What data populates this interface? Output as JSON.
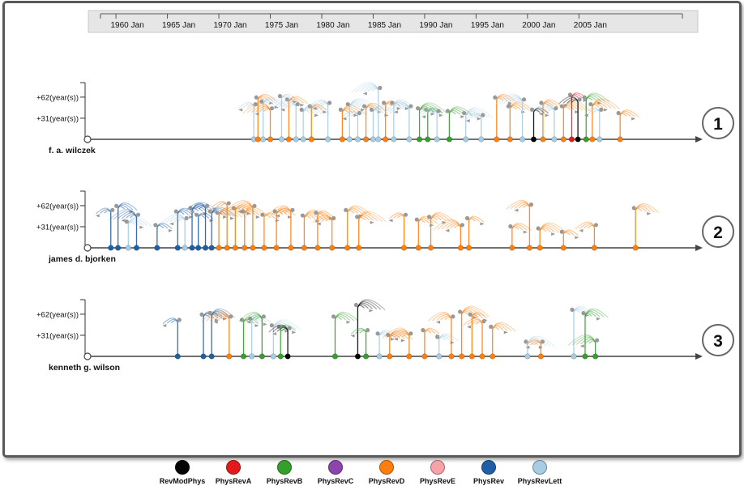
{
  "chart_data": {
    "type": "timeline",
    "time_axis": {
      "range": [
        1957,
        2016
      ],
      "ticks": [
        {
          "year": 1960,
          "label": "1960 Jan"
        },
        {
          "year": 1965,
          "label": "1965 Jan"
        },
        {
          "year": 1970,
          "label": "1970 Jan"
        },
        {
          "year": 1975,
          "label": "1975 Jan"
        },
        {
          "year": 1980,
          "label": "1980 Jan"
        },
        {
          "year": 1985,
          "label": "1985 Jan"
        },
        {
          "year": 1990,
          "label": "1990 Jan"
        },
        {
          "year": 1995,
          "label": "1995 Jan"
        },
        {
          "year": 2000,
          "label": "2000 Jan"
        },
        {
          "year": 2005,
          "label": "2005 Jan"
        }
      ]
    },
    "y_axis": {
      "unit_years": [
        0,
        75
      ],
      "ticks": [
        {
          "value": 31,
          "label": "+31(year(s))"
        },
        {
          "value": 62,
          "label": "+62(year(s))"
        }
      ]
    },
    "panels": [
      {
        "author": "f. a. wilczek",
        "badge": "1",
        "papers": [
          {
            "year": 1973.4,
            "journal": "PhysRevLett",
            "h": 48
          },
          {
            "year": 1973.8,
            "journal": "PhysRevD",
            "h": 58
          },
          {
            "year": 1974.3,
            "journal": "PhysRevLett",
            "h": 52
          },
          {
            "year": 1975.0,
            "journal": "PhysRevD",
            "h": 42
          },
          {
            "year": 1976.1,
            "journal": "PhysRevLett",
            "h": 60
          },
          {
            "year": 1976.8,
            "journal": "PhysRevD",
            "h": 55
          },
          {
            "year": 1977.5,
            "journal": "PhysRevLett",
            "h": 48
          },
          {
            "year": 1978.2,
            "journal": "PhysRevLett",
            "h": 40
          },
          {
            "year": 1979.0,
            "journal": "PhysRevD",
            "h": 45
          },
          {
            "year": 1980.6,
            "journal": "PhysRevLett",
            "h": 50
          },
          {
            "year": 1982.0,
            "journal": "PhysRevD",
            "h": 40
          },
          {
            "year": 1982.7,
            "journal": "PhysRevLett",
            "h": 48
          },
          {
            "year": 1983.5,
            "journal": "PhysRevLett",
            "h": 35
          },
          {
            "year": 1984.3,
            "journal": "PhysRevD",
            "h": 45
          },
          {
            "year": 1985.0,
            "journal": "PhysRevLett",
            "h": 40
          },
          {
            "year": 1985.5,
            "journal": "PhysRevLett",
            "h": 72
          },
          {
            "year": 1986.2,
            "journal": "PhysRevD",
            "h": 50
          },
          {
            "year": 1987.0,
            "journal": "PhysRevLett",
            "h": 50
          },
          {
            "year": 1988.5,
            "journal": "PhysRevLett",
            "h": 45
          },
          {
            "year": 1989.5,
            "journal": "PhysRevB",
            "h": 42
          },
          {
            "year": 1990.3,
            "journal": "PhysRevB",
            "h": 40
          },
          {
            "year": 1991.2,
            "journal": "PhysRevLett",
            "h": 38
          },
          {
            "year": 1992.4,
            "journal": "PhysRevB",
            "h": 38
          },
          {
            "year": 1994.0,
            "journal": "PhysRevLett",
            "h": 35
          },
          {
            "year": 1995.5,
            "journal": "PhysRevLett",
            "h": 32
          },
          {
            "year": 1997.0,
            "journal": "PhysRevD",
            "h": 58
          },
          {
            "year": 1998.3,
            "journal": "PhysRevD",
            "h": 45
          },
          {
            "year": 1999.5,
            "journal": "PhysRevLett",
            "h": 55
          },
          {
            "year": 2000.6,
            "journal": "RevModPhys",
            "h": 40
          },
          {
            "year": 2001.5,
            "journal": "PhysRevD",
            "h": 50
          },
          {
            "year": 2002.6,
            "journal": "PhysRevLett",
            "h": 42
          },
          {
            "year": 2003.5,
            "journal": "PhysRevD",
            "h": 45
          },
          {
            "year": 2004.3,
            "journal": "PhysRevA",
            "h": 62
          },
          {
            "year": 2004.9,
            "journal": "RevModPhys",
            "h": 55
          },
          {
            "year": 2005.7,
            "journal": "PhysRevB",
            "h": 58
          },
          {
            "year": 2006.3,
            "journal": "PhysRevD",
            "h": 48
          },
          {
            "year": 2007.0,
            "journal": "PhysRevLett",
            "h": 40
          },
          {
            "year": 2009.0,
            "journal": "PhysRevD",
            "h": 35
          }
        ]
      },
      {
        "author": "james d. bjorken",
        "badge": "2",
        "papers": [
          {
            "year": 1959.5,
            "journal": "PhysRev",
            "h": 52
          },
          {
            "year": 1960.2,
            "journal": "PhysRev",
            "h": 58
          },
          {
            "year": 1961.2,
            "journal": "PhysRevLett",
            "h": 35
          },
          {
            "year": 1962.0,
            "journal": "PhysRev",
            "h": 45
          },
          {
            "year": 1964.0,
            "journal": "PhysRev",
            "h": 30
          },
          {
            "year": 1966.0,
            "journal": "PhysRev",
            "h": 50
          },
          {
            "year": 1966.7,
            "journal": "PhysRevLett",
            "h": 40
          },
          {
            "year": 1967.4,
            "journal": "PhysRev",
            "h": 55
          },
          {
            "year": 1968.0,
            "journal": "PhysRev",
            "h": 45
          },
          {
            "year": 1968.7,
            "journal": "PhysRev",
            "h": 58
          },
          {
            "year": 1969.3,
            "journal": "PhysRev",
            "h": 50
          },
          {
            "year": 1970.0,
            "journal": "PhysRevD",
            "h": 48
          },
          {
            "year": 1970.8,
            "journal": "PhysRevD",
            "h": 62
          },
          {
            "year": 1971.6,
            "journal": "PhysRevD",
            "h": 55
          },
          {
            "year": 1972.5,
            "journal": "PhysRevD",
            "h": 50
          },
          {
            "year": 1973.3,
            "journal": "PhysRevD",
            "h": 58
          },
          {
            "year": 1974.4,
            "journal": "PhysRevD",
            "h": 45
          },
          {
            "year": 1975.6,
            "journal": "PhysRevD",
            "h": 50
          },
          {
            "year": 1977.0,
            "journal": "PhysRevD",
            "h": 52
          },
          {
            "year": 1978.3,
            "journal": "PhysRevD",
            "h": 44
          },
          {
            "year": 1979.6,
            "journal": "PhysRevD",
            "h": 48
          },
          {
            "year": 1981.0,
            "journal": "PhysRevD",
            "h": 40
          },
          {
            "year": 1982.5,
            "journal": "PhysRevD",
            "h": 52
          },
          {
            "year": 1983.6,
            "journal": "PhysRevD",
            "h": 42
          },
          {
            "year": 1988.0,
            "journal": "PhysRevD",
            "h": 45
          },
          {
            "year": 1989.4,
            "journal": "PhysRevD",
            "h": 38
          },
          {
            "year": 1990.6,
            "journal": "PhysRevD",
            "h": 42
          },
          {
            "year": 1993.5,
            "journal": "PhysRevD",
            "h": 30
          },
          {
            "year": 1994.3,
            "journal": "PhysRevD",
            "h": 40
          },
          {
            "year": 1998.5,
            "journal": "PhysRevD",
            "h": 28
          },
          {
            "year": 2000.2,
            "journal": "PhysRevD",
            "h": 60
          },
          {
            "year": 2001.2,
            "journal": "PhysRevD",
            "h": 25
          },
          {
            "year": 2003.5,
            "journal": "PhysRevD",
            "h": 20
          },
          {
            "year": 2006.5,
            "journal": "PhysRevD",
            "h": 30
          },
          {
            "year": 2010.5,
            "journal": "PhysRevD",
            "h": 55
          }
        ]
      },
      {
        "author": "kenneth g. wilson",
        "badge": "3",
        "papers": [
          {
            "year": 1966.0,
            "journal": "PhysRev",
            "h": 50
          },
          {
            "year": 1968.5,
            "journal": "PhysRev",
            "h": 58
          },
          {
            "year": 1969.3,
            "journal": "PhysRev",
            "h": 60
          },
          {
            "year": 1971.0,
            "journal": "PhysRevD",
            "h": 55
          },
          {
            "year": 1972.4,
            "journal": "PhysRevB",
            "h": 50
          },
          {
            "year": 1973.2,
            "journal": "PhysRevLett",
            "h": 52
          },
          {
            "year": 1974.2,
            "journal": "PhysRevB",
            "h": 55
          },
          {
            "year": 1975.3,
            "journal": "PhysRevLett",
            "h": 42
          },
          {
            "year": 1976.0,
            "journal": "PhysRevB",
            "h": 40
          },
          {
            "year": 1976.7,
            "journal": "RevModPhys",
            "h": 38
          },
          {
            "year": 1981.3,
            "journal": "PhysRevB",
            "h": 55
          },
          {
            "year": 1983.5,
            "journal": "RevModPhys",
            "h": 72
          },
          {
            "year": 1984.3,
            "journal": "PhysRevB",
            "h": 35
          },
          {
            "year": 1985.6,
            "journal": "PhysRevLett",
            "h": 30
          },
          {
            "year": 1986.6,
            "journal": "PhysRevD",
            "h": 28
          },
          {
            "year": 1988.5,
            "journal": "PhysRevD",
            "h": 30
          },
          {
            "year": 1990.0,
            "journal": "PhysRevD",
            "h": 35
          },
          {
            "year": 1991.4,
            "journal": "PhysRevLett",
            "h": 25
          },
          {
            "year": 1992.6,
            "journal": "PhysRevD",
            "h": 55
          },
          {
            "year": 1993.6,
            "journal": "PhysRevD",
            "h": 62
          },
          {
            "year": 1994.6,
            "journal": "PhysRevD",
            "h": 58
          },
          {
            "year": 1995.6,
            "journal": "PhysRevD",
            "h": 48
          },
          {
            "year": 1996.6,
            "journal": "PhysRevD",
            "h": 40
          },
          {
            "year": 2000.0,
            "journal": "PhysRevLett",
            "h": 18
          },
          {
            "year": 2001.3,
            "journal": "PhysRevD",
            "h": 18
          },
          {
            "year": 2004.5,
            "journal": "PhysRevLett",
            "h": 65
          },
          {
            "year": 2005.6,
            "journal": "PhysRevB",
            "h": 60
          },
          {
            "year": 2006.6,
            "journal": "PhysRevB",
            "h": 20
          }
        ]
      }
    ],
    "legend": [
      {
        "name": "RevModPhys",
        "color": "#000000"
      },
      {
        "name": "PhysRevA",
        "color": "#e31a1c"
      },
      {
        "name": "PhysRevB",
        "color": "#33a02c"
      },
      {
        "name": "PhysRevC",
        "color": "#8e44ad"
      },
      {
        "name": "PhysRevD",
        "color": "#ff7f0e"
      },
      {
        "name": "PhysRevE",
        "color": "#f7a1a8"
      },
      {
        "name": "PhysRev",
        "color": "#1f5fa6"
      },
      {
        "name": "PhysRevLett",
        "color": "#a6cde3"
      }
    ]
  }
}
